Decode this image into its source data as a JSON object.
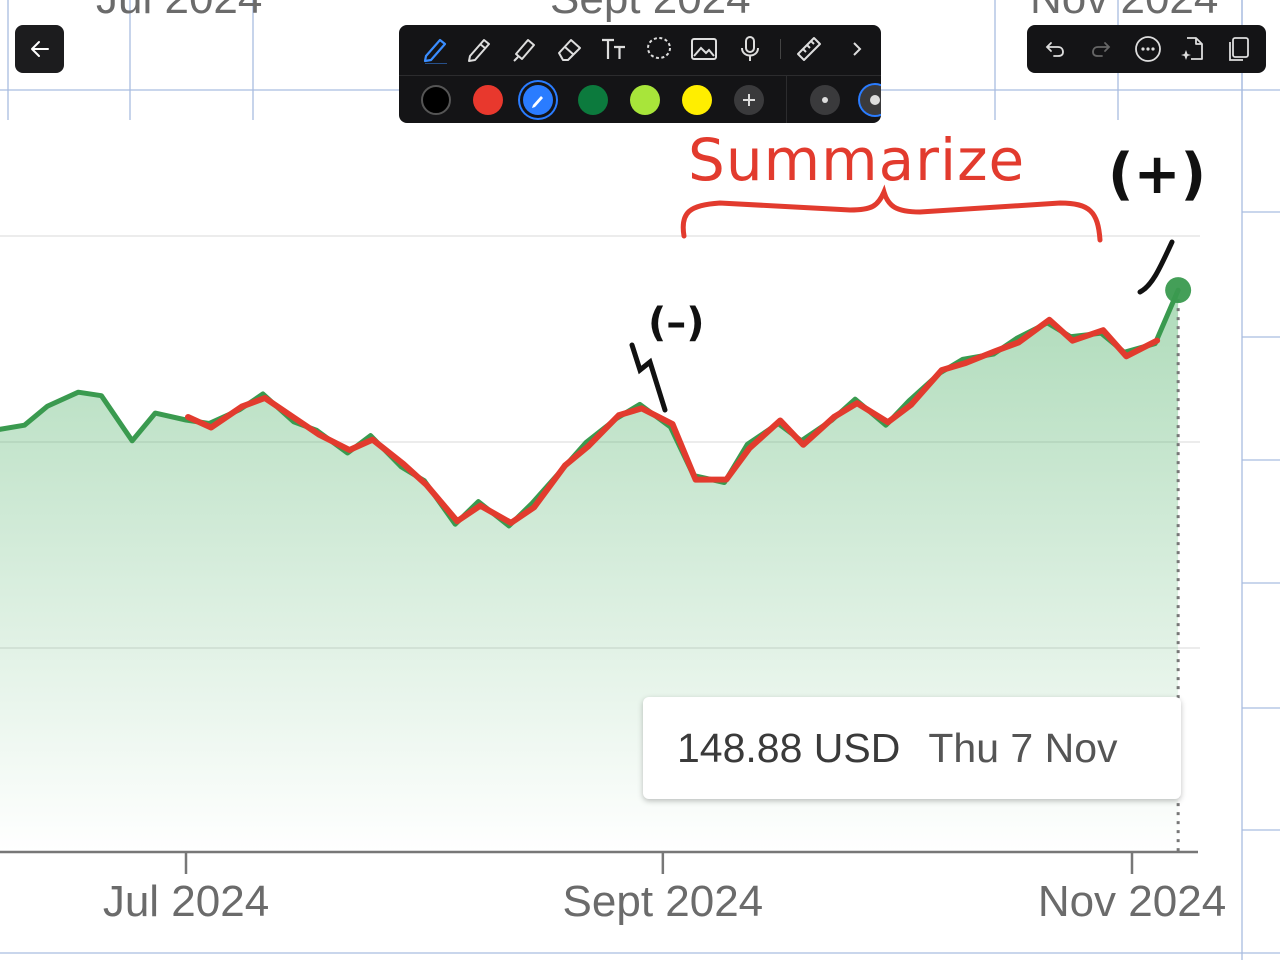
{
  "chart_data": {
    "type": "area",
    "title": "",
    "xlabel": "",
    "ylabel": "",
    "x_ticks": [
      "Jul 2024",
      "Sept 2024",
      "Nov 2024"
    ],
    "series": [
      {
        "color": "#3a9a4f",
        "points": [
          [
            "2024-06-03",
            140.9
          ],
          [
            "2024-06-06",
            140.8
          ],
          [
            "2024-06-10",
            141.1
          ],
          [
            "2024-06-13",
            142.2
          ],
          [
            "2024-06-17",
            143.0
          ],
          [
            "2024-06-20",
            142.8
          ],
          [
            "2024-06-24",
            140.2
          ],
          [
            "2024-06-27",
            141.8
          ],
          [
            "2024-07-01",
            141.4
          ],
          [
            "2024-07-04",
            141.2
          ],
          [
            "2024-07-08",
            142.0
          ],
          [
            "2024-07-11",
            142.9
          ],
          [
            "2024-07-15",
            141.3
          ],
          [
            "2024-07-18",
            140.8
          ],
          [
            "2024-07-22",
            139.5
          ],
          [
            "2024-07-25",
            140.5
          ],
          [
            "2024-07-29",
            138.7
          ],
          [
            "2024-08-01",
            137.9
          ],
          [
            "2024-08-05",
            135.4
          ],
          [
            "2024-08-08",
            136.7
          ],
          [
            "2024-08-12",
            135.3
          ],
          [
            "2024-08-15",
            136.6
          ],
          [
            "2024-08-19",
            138.6
          ],
          [
            "2024-08-22",
            140.1
          ],
          [
            "2024-08-26",
            141.5
          ],
          [
            "2024-08-29",
            142.3
          ],
          [
            "2024-09-02",
            141.0
          ],
          [
            "2024-09-05",
            138.2
          ],
          [
            "2024-09-09",
            137.8
          ],
          [
            "2024-09-12",
            140.0
          ],
          [
            "2024-09-16",
            141.2
          ],
          [
            "2024-09-19",
            140.2
          ],
          [
            "2024-09-23",
            141.4
          ],
          [
            "2024-09-26",
            142.6
          ],
          [
            "2024-09-30",
            141.1
          ],
          [
            "2024-10-03",
            142.5
          ],
          [
            "2024-10-07",
            144.1
          ],
          [
            "2024-10-10",
            144.9
          ],
          [
            "2024-10-14",
            145.2
          ],
          [
            "2024-10-17",
            146.1
          ],
          [
            "2024-10-21",
            147.0
          ],
          [
            "2024-10-24",
            146.2
          ],
          [
            "2024-10-28",
            146.4
          ],
          [
            "2024-10-31",
            145.3
          ],
          [
            "2024-11-04",
            145.8
          ],
          [
            "2024-11-07",
            148.88
          ]
        ]
      }
    ],
    "highlight_point": [
      "2024-11-07",
      148.88
    ],
    "ylim": [
      130,
      152
    ],
    "grid": true,
    "legend": "none"
  },
  "tooltip": {
    "price": "148.88 USD",
    "date": "Thu 7 Nov"
  },
  "annotations": {
    "summarize": "Summarize",
    "minus": "(–)",
    "plus": "(+)"
  },
  "colors": {
    "ink_red": "#e23b2e",
    "ink_black": "#111111",
    "line_green": "#3a9a4f",
    "toolbar_bg": "#141416",
    "accent_blue": "#2a7cff"
  },
  "toolbar": {
    "tools": [
      "pen-tool-icon",
      "pencil-tool-icon",
      "highlighter-icon",
      "eraser-icon",
      "text-tool-icon",
      "lasso-icon",
      "image-icon",
      "microphone-icon",
      "ruler-icon",
      "chevron-right-icon"
    ],
    "swatches": [
      "#000000",
      "#e8382d",
      "#2a7cff",
      "#0c7a3d",
      "#a8e53a",
      "#ffee00"
    ]
  }
}
